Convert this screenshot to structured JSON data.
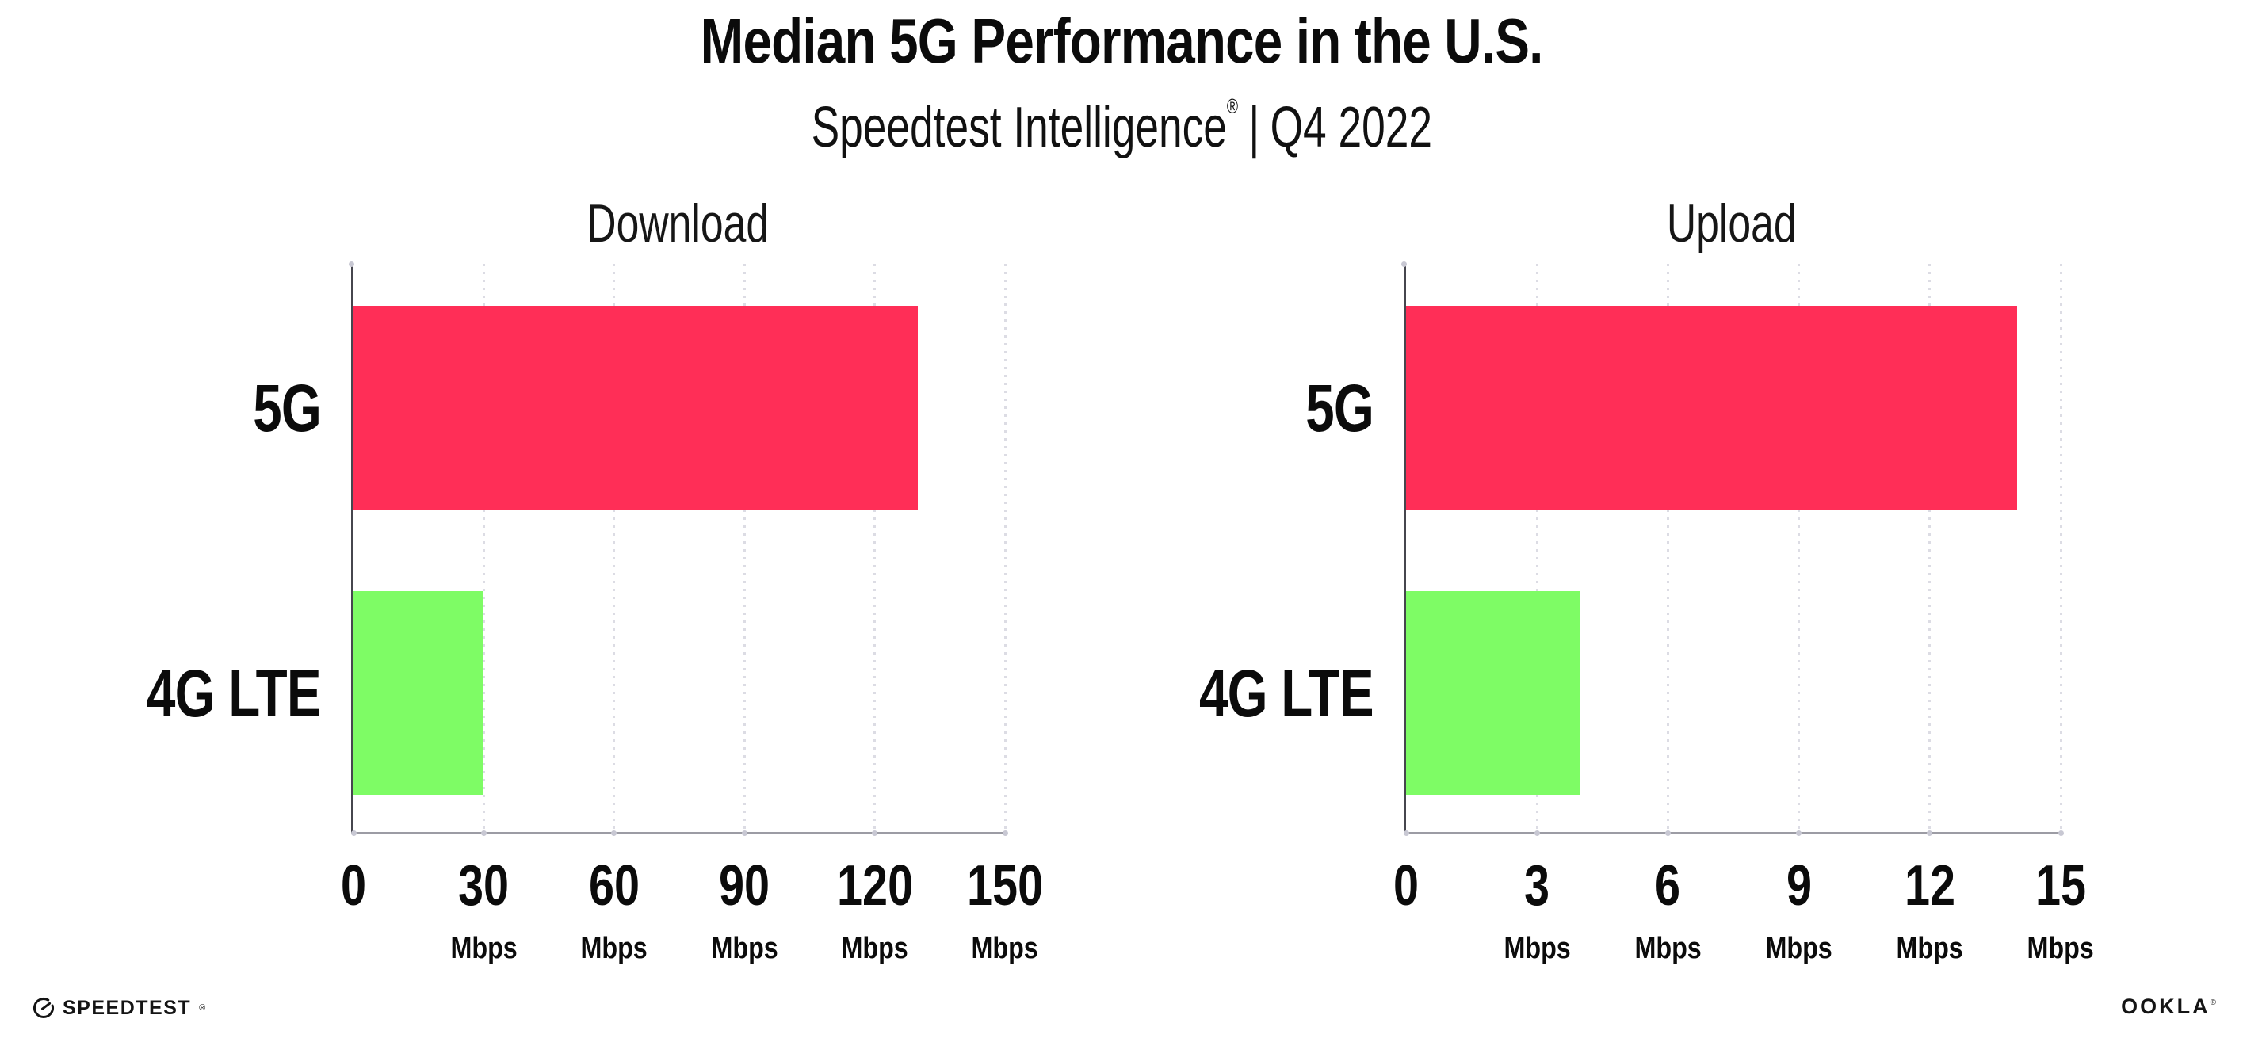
{
  "header": {
    "title": "Median 5G Performance in the U.S.",
    "subtitle_brand": "Speedtest Intelligence",
    "subtitle_reg_mark": "®",
    "subtitle_separator": "|",
    "subtitle_period": "Q4 2022"
  },
  "chart_data": [
    {
      "type": "bar",
      "orientation": "horizontal",
      "title": "Download",
      "categories": [
        "5G",
        "4G LTE"
      ],
      "values": [
        130,
        30
      ],
      "unit": "Mbps",
      "xlim": [
        0,
        150
      ],
      "xticks": [
        0,
        30,
        60,
        90,
        120,
        150
      ],
      "bar_colors": [
        "#ff2e57",
        "#7efc65"
      ],
      "grid": "dotted-vertical",
      "legend": "none"
    },
    {
      "type": "bar",
      "orientation": "horizontal",
      "title": "Upload",
      "categories": [
        "5G",
        "4G LTE"
      ],
      "values": [
        14,
        4
      ],
      "unit": "Mbps",
      "xlim": [
        0,
        15
      ],
      "xticks": [
        0,
        3,
        6,
        9,
        12,
        15
      ],
      "bar_colors": [
        "#ff2e57",
        "#7efc65"
      ],
      "grid": "dotted-vertical",
      "legend": "none"
    }
  ],
  "footer": {
    "speedtest_logo_text": "SPEEDTEST",
    "speedtest_reg_mark": "®",
    "ookla_logo_text": "OOKLA",
    "ookla_reg_mark": "®"
  },
  "colors": {
    "bar_5g": "#ff2e57",
    "bar_4g_lte": "#7efc65",
    "y_axis_line": "#46464e",
    "x_axis_line": "#9c9ca4",
    "gridline": "#dcdce4",
    "axis_dot": "#c8c8d3",
    "text": "#0b0b0b",
    "background": "#ffffff"
  }
}
